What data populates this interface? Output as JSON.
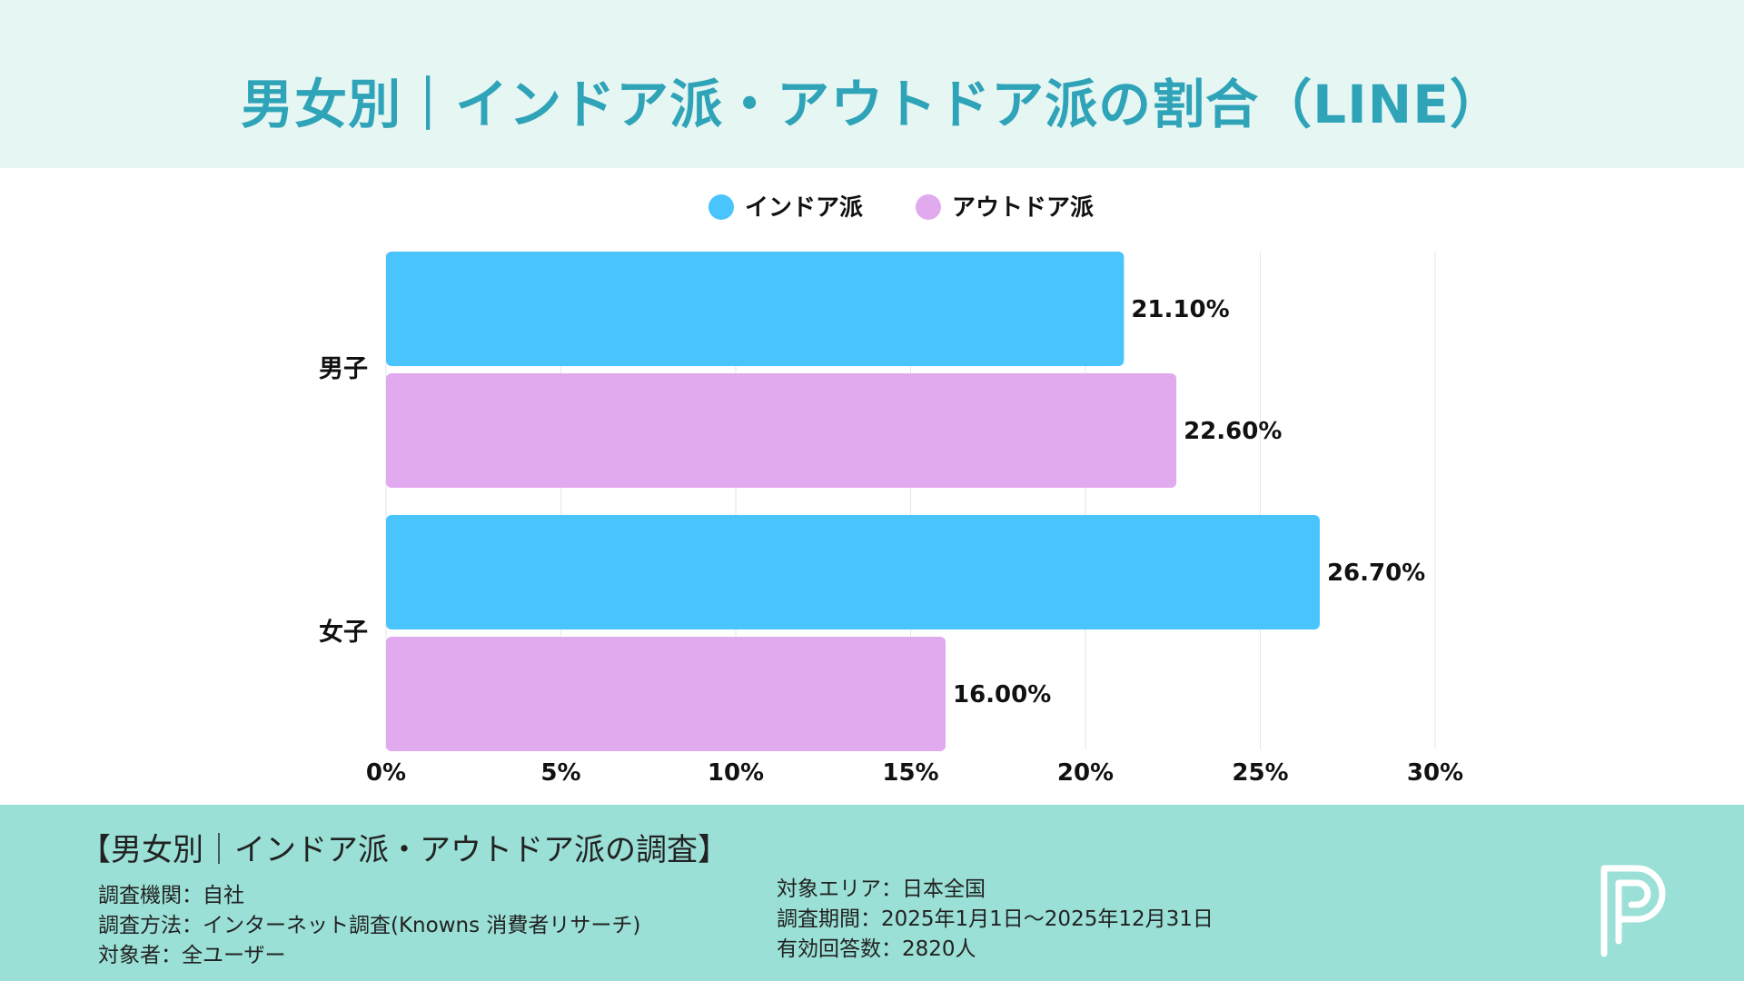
{
  "title": "男女別｜インドア派・アウトドア派の割合（LINE）",
  "colors": {
    "indoor": "#4ac4fc",
    "outdoor": "#e1a9ee",
    "title": "#2fa3b8",
    "header_bg": "#e5f6f3",
    "footer_bg": "#9ae0d6"
  },
  "chart_data": {
    "type": "bar",
    "orientation": "horizontal",
    "categories": [
      "男子",
      "女子"
    ],
    "series": [
      {
        "name": "インドア派",
        "values": [
          21.1,
          26.7
        ],
        "labels": [
          "21.10%",
          "26.70%"
        ],
        "color": "#4ac4fc"
      },
      {
        "name": "アウトドア派",
        "values": [
          22.6,
          16.0
        ],
        "labels": [
          "22.60%",
          "16.00%"
        ],
        "color": "#e1a9ee"
      }
    ],
    "xlim": [
      0,
      30
    ],
    "xticks": [
      0,
      5,
      10,
      15,
      20,
      25,
      30
    ],
    "xtick_labels": [
      "0%",
      "5%",
      "10%",
      "15%",
      "20%",
      "25%",
      "30%"
    ],
    "grid": true,
    "legend": "top-center"
  },
  "footer": {
    "title": "【男女別｜インドア派・アウトドア派の調査】",
    "left": [
      "調査機関：自社",
      "調査方法：インターネット調査(Knowns 消費者リサーチ)",
      "対象者：全ユーザー"
    ],
    "right": [
      "対象エリア：日本全国",
      "調査期間：2025年1月1日〜2025年12月31日",
      "有効回答数：2820人"
    ]
  }
}
